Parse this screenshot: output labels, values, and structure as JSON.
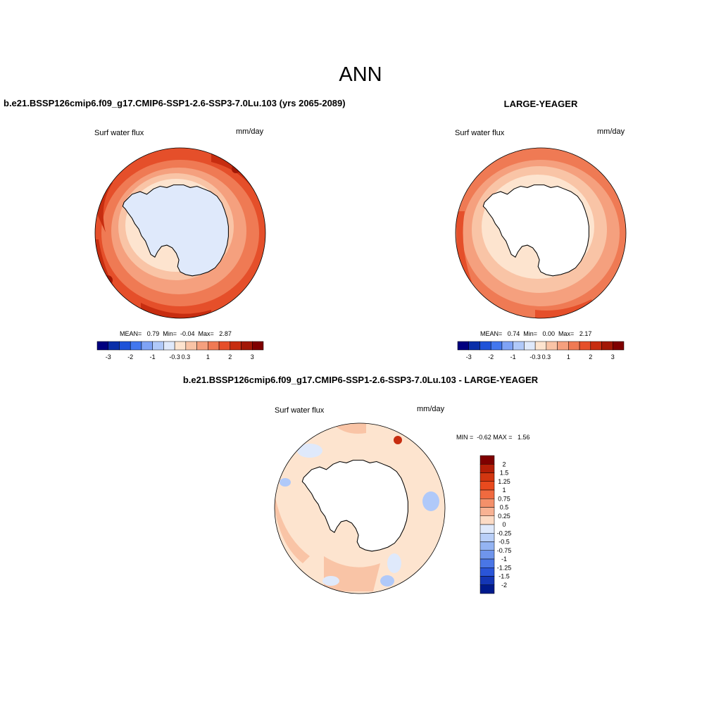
{
  "figure": {
    "main_title": "ANN"
  },
  "panels": {
    "test": {
      "title": "b.e21.BSSP126cmip6.f09_g17.CMIP6-SSP1-2.6-SSP3-7.0Lu.103 (yrs 2065-2089)",
      "variable": "Surf water flux",
      "units": "mm/day",
      "stats": "MEAN=   0.79  Min=  -0.04  Max=   2.87"
    },
    "control": {
      "title": "LARGE-YEAGER",
      "variable": "Surf water flux",
      "units": "mm/day",
      "stats": "MEAN=   0.74  Min=   0.00  Max=   2.17"
    },
    "diff": {
      "title": "b.e21.BSSP126cmip6.f09_g17.CMIP6-SSP1-2.6-SSP3-7.0Lu.103 - LARGE-YEAGER",
      "variable": "Surf water flux",
      "units": "mm/day",
      "stats": "MIN =  -0.62 MAX =   1.56"
    }
  },
  "colorbar_horizontal": {
    "colors": [
      "#00007f",
      "#0a2fa8",
      "#1e52d8",
      "#4277ee",
      "#7fa3f5",
      "#b0c9f9",
      "#dfe9fb",
      "#fde4cf",
      "#f9c4a6",
      "#f5a07e",
      "#ef7a54",
      "#e54f2a",
      "#c72d10",
      "#a21806",
      "#7f0000"
    ],
    "tick_labels": [
      "-3",
      "-2",
      "-1",
      "-0.3",
      "0.3",
      "1",
      "2",
      "3"
    ],
    "tick_positions": [
      1,
      3,
      5,
      7,
      8,
      10,
      12,
      14
    ]
  },
  "colorbar_vertical": {
    "colors": [
      "#7f0000",
      "#b41e07",
      "#d23610",
      "#e84a1e",
      "#f06a3f",
      "#f4906a",
      "#f8b293",
      "#fcdbc5",
      "#dfe9fb",
      "#b9cff8",
      "#94b4f3",
      "#6f95ec",
      "#4a76e6",
      "#2a55d8",
      "#1436b5",
      "#001a8c"
    ],
    "tick_labels": [
      "2",
      "1.5",
      "1.25",
      "1",
      "0.75",
      "0.5",
      "0.25",
      "0",
      "-0.25",
      "-0.5",
      "-0.75",
      "-1",
      "-1.25",
      "-1.5",
      "-2"
    ]
  }
}
